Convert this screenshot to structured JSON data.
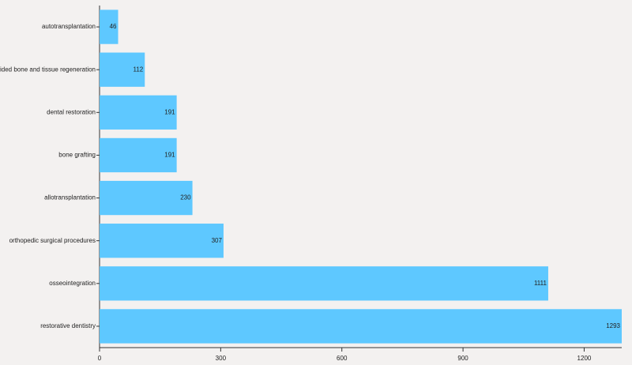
{
  "chart_data": {
    "type": "bar",
    "horizontal": true,
    "categories": [
      "autotransplantation",
      "guided bone and tissue regeneration",
      "dental restoration",
      "bone grafting",
      "allotransplantation",
      "orthopedic surgical procedures",
      "osseointegration",
      "restorative dentistry"
    ],
    "values": [
      46,
      112,
      191,
      191,
      230,
      307,
      1111,
      1293
    ],
    "color": "#5ec8ff",
    "xlim": [
      0,
      1293
    ],
    "xticks": [
      0,
      300,
      600,
      900,
      1200
    ]
  }
}
